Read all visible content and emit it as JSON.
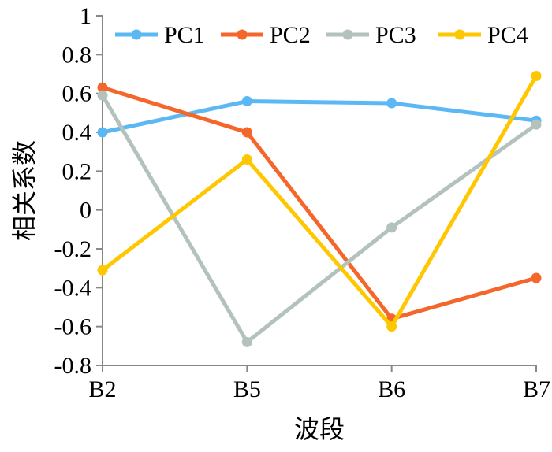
{
  "chart_data": {
    "type": "line",
    "categories": [
      "B2",
      "B5",
      "B6",
      "B7"
    ],
    "series": [
      {
        "name": "PC1",
        "color": "#5BB8F5",
        "values": [
          0.4,
          0.56,
          0.55,
          0.46
        ]
      },
      {
        "name": "PC2",
        "color": "#F4662A",
        "values": [
          0.63,
          0.4,
          -0.56,
          -0.35
        ]
      },
      {
        "name": "PC3",
        "color": "#B4C2BD",
        "values": [
          0.59,
          -0.68,
          -0.09,
          0.44
        ]
      },
      {
        "name": "PC4",
        "color": "#FFC700",
        "values": [
          -0.31,
          0.26,
          -0.6,
          0.69
        ]
      }
    ],
    "xlabel": "波段",
    "ylabel": "相关系数",
    "ylim": [
      -0.8,
      1
    ],
    "yticks": [
      "1",
      "0.8",
      "0.6",
      "0.4",
      "0.2",
      "0",
      "-0.2",
      "-0.4",
      "-0.6",
      "-0.8"
    ],
    "legend_position": "top",
    "grid": false
  }
}
